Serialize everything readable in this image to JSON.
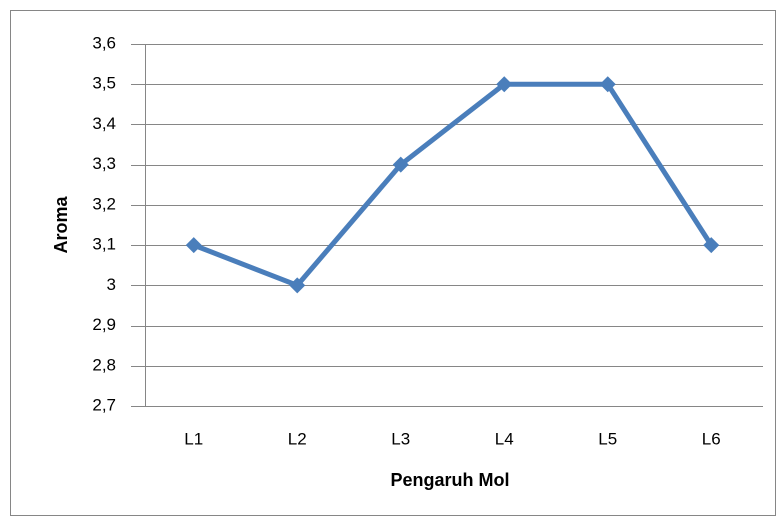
{
  "chart_data": {
    "type": "line",
    "x_label": "Pengaruh Mol",
    "y_label": "Aroma",
    "categories": [
      "L1",
      "L2",
      "L3",
      "L4",
      "L5",
      "L6"
    ],
    "values": [
      3.1,
      3.0,
      3.3,
      3.5,
      3.5,
      3.1
    ],
    "color": "#4a7ebb",
    "ylim": [
      2.7,
      3.6
    ],
    "yticks": [
      {
        "value": 2.7,
        "label": "2,7"
      },
      {
        "value": 2.8,
        "label": "2,8"
      },
      {
        "value": 2.9,
        "label": "2,9"
      },
      3,
      {
        "value": 3.1,
        "label": "3,1"
      },
      {
        "value": 3.2,
        "label": "3,2"
      },
      {
        "value": 3.3,
        "label": "3,3"
      },
      {
        "value": 3.4,
        "label": "3,4"
      },
      {
        "value": 3.5,
        "label": "3,5"
      },
      {
        "value": 3.6,
        "label": "3,6"
      }
    ],
    "grid": true
  }
}
